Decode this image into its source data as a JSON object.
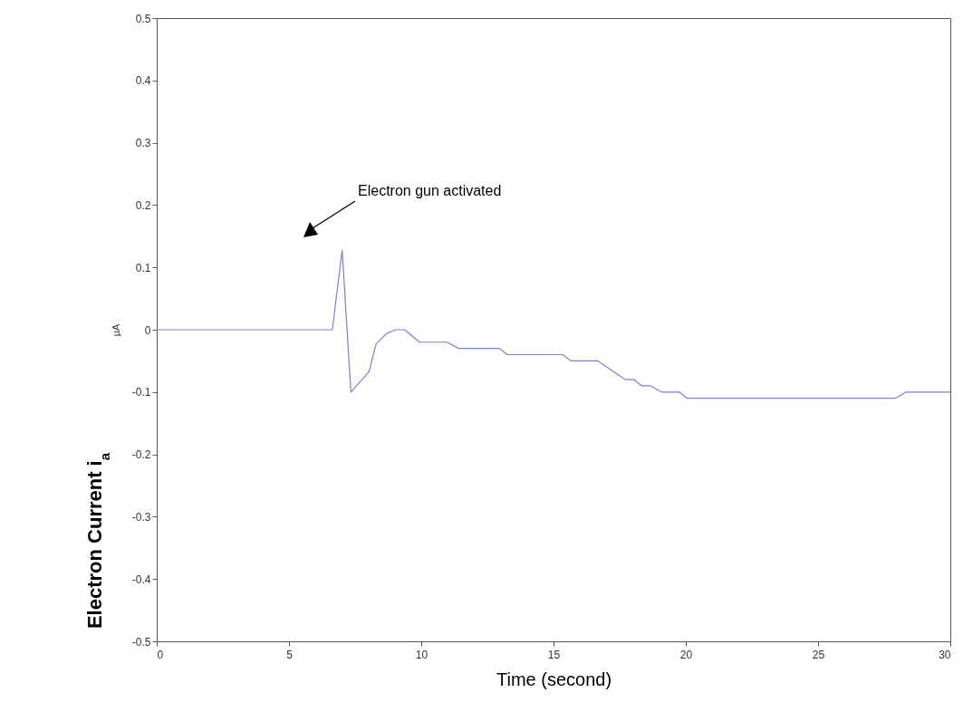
{
  "chart_data": {
    "type": "line",
    "xlabel": "Time (second)",
    "ylabel": "μA",
    "annotations": [
      "Electron Current i$_{a}$",
      "Electron gun activated"
    ],
    "x": [
      0,
      6.64,
      7.01,
      7.34,
      8.03,
      8.29,
      8.69,
      9.03,
      9.37,
      9.94,
      10.97,
      11.42,
      12.96,
      13.25,
      15.36,
      15.65,
      16.68,
      17.71,
      18.05,
      18.33,
      18.67,
      19.08,
      19.76,
      20.04,
      27.92,
      28.32,
      30
    ],
    "series": [
      {
        "color": "#7f7fd0",
        "values": [
          0,
          0,
          0.128,
          -0.1,
          -0.067,
          -0.023,
          -0.006,
          0,
          0,
          -0.02,
          -0.02,
          -0.03,
          -0.03,
          -0.04,
          -0.04,
          -0.05,
          -0.05,
          -0.08,
          -0.08,
          -0.09,
          -0.09,
          -0.1,
          -0.1,
          -0.11,
          -0.11,
          -0.1,
          -0.1
        ]
      }
    ],
    "xlim": [
      0,
      30
    ],
    "ylim": [
      -0.5,
      0.5
    ],
    "xticks": [
      0,
      5,
      10,
      15,
      20,
      25,
      30
    ],
    "yticks": [
      -0.5,
      -0.4,
      -0.3,
      -0.2,
      -0.1,
      0,
      0.1,
      0.2,
      0.3,
      0.4,
      0.5
    ]
  }
}
